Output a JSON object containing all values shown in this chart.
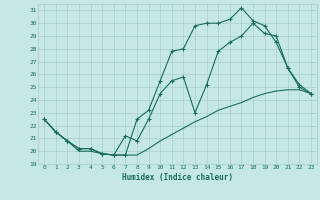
{
  "xlabel": "Humidex (Indice chaleur)",
  "bg_color": "#c5e8e5",
  "line_color": "#1a6b5a",
  "grid_color": "#a8ceca",
  "xlim": [
    -0.5,
    23.5
  ],
  "ylim": [
    19,
    31.5
  ],
  "xticks": [
    0,
    1,
    2,
    3,
    4,
    5,
    6,
    7,
    8,
    9,
    10,
    11,
    12,
    13,
    14,
    15,
    16,
    17,
    18,
    19,
    20,
    21,
    22,
    23
  ],
  "yticks": [
    19,
    20,
    21,
    22,
    23,
    24,
    25,
    26,
    27,
    28,
    29,
    30,
    31
  ],
  "line1_x": [
    0,
    1,
    2,
    3,
    4,
    5,
    6,
    7,
    8,
    9,
    10,
    11,
    12,
    13,
    14,
    15,
    16,
    17,
    18,
    19,
    20,
    21,
    22,
    23
  ],
  "line1_y": [
    22.5,
    21.5,
    20.8,
    20.2,
    20.2,
    19.8,
    19.7,
    19.7,
    22.5,
    23.2,
    25.5,
    27.8,
    28.0,
    29.8,
    30.0,
    30.0,
    30.3,
    31.2,
    30.2,
    29.8,
    28.5,
    26.5,
    25.0,
    24.5
  ],
  "line2_x": [
    0,
    1,
    2,
    3,
    4,
    5,
    6,
    7,
    8,
    9,
    10,
    11,
    12,
    13,
    14,
    15,
    16,
    17,
    18,
    19,
    20,
    21,
    22,
    23
  ],
  "line2_y": [
    22.5,
    21.5,
    20.8,
    20.2,
    20.2,
    19.8,
    19.7,
    21.2,
    20.8,
    22.5,
    24.5,
    25.5,
    25.8,
    23.0,
    25.2,
    27.8,
    28.5,
    29.0,
    30.0,
    29.2,
    29.0,
    26.5,
    25.2,
    24.5
  ],
  "line3_x": [
    0,
    1,
    2,
    3,
    4,
    5,
    6,
    7,
    8,
    9,
    10,
    11,
    12,
    13,
    14,
    15,
    16,
    17,
    18,
    19,
    20,
    21,
    22,
    23
  ],
  "line3_y": [
    22.5,
    21.5,
    20.8,
    20.0,
    20.0,
    19.8,
    19.7,
    19.7,
    19.7,
    20.2,
    20.8,
    21.3,
    21.8,
    22.3,
    22.7,
    23.2,
    23.5,
    23.8,
    24.2,
    24.5,
    24.7,
    24.8,
    24.8,
    24.5
  ]
}
